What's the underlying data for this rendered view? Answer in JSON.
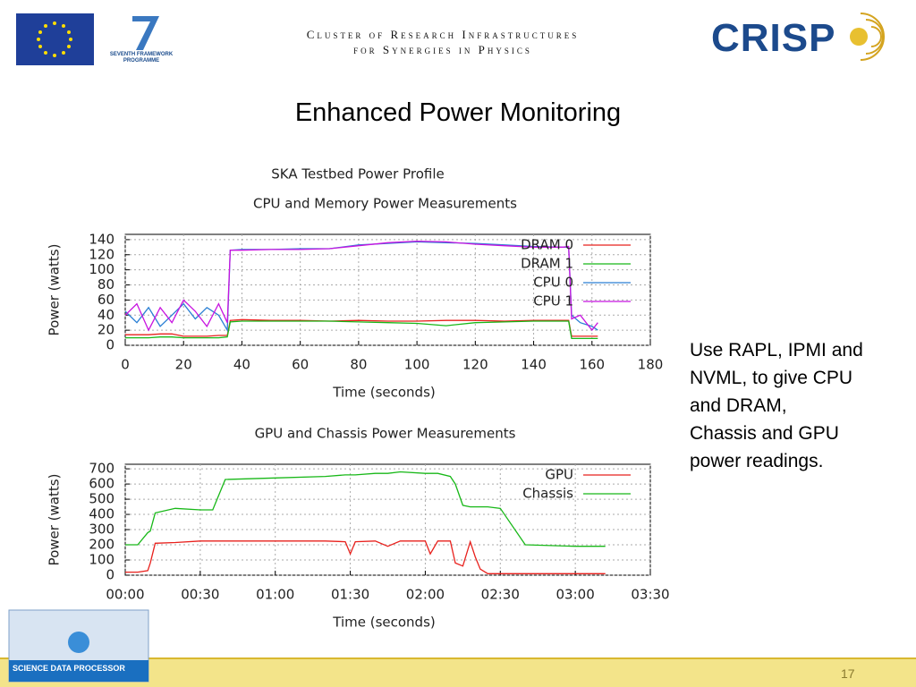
{
  "header": {
    "line1": "Cluster of Research Infrastructures",
    "line2": "for Synergies in Physics",
    "logo": "CRISP",
    "fp7": "SEVENTH FRAMEWORK PROGRAMME"
  },
  "slide": {
    "title": "Enhanced Power Monitoring",
    "side_text": [
      "Use RAPL, IPMI and",
      "NVML, to give CPU",
      "and DRAM,",
      "Chassis and GPU",
      "power readings."
    ],
    "footer_logo": "SCIENCE DATA PROCESSOR",
    "page_number": "17"
  },
  "figure": {
    "title": "SKA Testbed Power Profile"
  },
  "chart_data": [
    {
      "type": "line",
      "title": "CPU and Memory Power Measurements",
      "x_label": "Time (seconds)",
      "y_label": "Power (watts)",
      "x": [
        0,
        4,
        8,
        12,
        16,
        20,
        24,
        28,
        32,
        35,
        36,
        40,
        50,
        60,
        70,
        80,
        90,
        100,
        110,
        120,
        130,
        140,
        150,
        152,
        153,
        156,
        160,
        162
      ],
      "series": [
        {
          "name": "DRAM 0",
          "color": "#e8201c",
          "values": [
            14,
            14,
            14,
            15,
            15,
            12,
            12,
            12,
            13,
            13,
            33,
            34,
            33,
            33,
            32,
            33,
            32,
            32,
            33,
            33,
            32,
            33,
            33,
            33,
            12,
            12,
            12,
            12
          ]
        },
        {
          "name": "DRAM 1",
          "color": "#18b818",
          "values": [
            10,
            10,
            10,
            11,
            11,
            10,
            10,
            10,
            10,
            11,
            31,
            32,
            32,
            32,
            32,
            31,
            30,
            29,
            26,
            30,
            31,
            32,
            32,
            32,
            9,
            9,
            9,
            9
          ]
        },
        {
          "name": "CPU 0",
          "color": "#2a7fd4",
          "values": [
            45,
            30,
            50,
            25,
            40,
            55,
            35,
            50,
            40,
            20,
            126,
            127,
            127,
            128,
            128,
            133,
            135,
            137,
            136,
            135,
            133,
            131,
            130,
            130,
            40,
            30,
            25,
            20
          ]
        },
        {
          "name": "CPU 1",
          "color": "#c814e0",
          "values": [
            40,
            55,
            20,
            50,
            30,
            60,
            45,
            25,
            55,
            30,
            126,
            126,
            127,
            127,
            128,
            132,
            136,
            138,
            137,
            134,
            132,
            130,
            130,
            131,
            35,
            40,
            20,
            30
          ]
        }
      ],
      "xlim": [
        0,
        180
      ],
      "ylim": [
        0,
        147
      ],
      "xticks": [
        0,
        20,
        40,
        60,
        80,
        100,
        120,
        140,
        160,
        180
      ],
      "yticks": [
        0,
        20,
        40,
        60,
        80,
        100,
        120,
        140
      ],
      "grid": true,
      "legend": "upper right"
    },
    {
      "type": "line",
      "title": "GPU and Chassis Power Measurements",
      "x_label": "Time (seconds)",
      "y_label": "Power (watts)",
      "x": [
        0,
        5,
        9,
        10,
        12,
        20,
        30,
        35,
        40,
        60,
        80,
        88,
        90,
        92,
        100,
        105,
        110,
        120,
        122,
        125,
        130,
        132,
        135,
        138,
        140,
        142,
        145,
        150,
        160,
        180,
        192
      ],
      "series": [
        {
          "name": "GPU",
          "color": "#e8201c",
          "values": [
            20,
            20,
            30,
            80,
            210,
            215,
            225,
            225,
            225,
            225,
            225,
            220,
            140,
            220,
            225,
            190,
            225,
            225,
            140,
            225,
            225,
            80,
            60,
            220,
            120,
            40,
            10,
            10,
            10,
            10,
            10
          ]
        },
        {
          "name": "Chassis",
          "color": "#18b818",
          "values": [
            200,
            200,
            280,
            290,
            410,
            440,
            430,
            430,
            630,
            640,
            650,
            660,
            660,
            660,
            670,
            670,
            680,
            670,
            670,
            670,
            650,
            600,
            460,
            450,
            450,
            450,
            450,
            440,
            200,
            190,
            190
          ]
        }
      ],
      "xlim": [
        0,
        210
      ],
      "ylim": [
        0,
        730
      ],
      "xticks": [
        {
          "value": 0,
          "label": "00:00"
        },
        {
          "value": 30,
          "label": "00:30"
        },
        {
          "value": 60,
          "label": "01:00"
        },
        {
          "value": 90,
          "label": "01:30"
        },
        {
          "value": 120,
          "label": "02:00"
        },
        {
          "value": 150,
          "label": "02:30"
        },
        {
          "value": 180,
          "label": "03:00"
        },
        {
          "value": 210,
          "label": "03:30"
        }
      ],
      "yticks": [
        0,
        100,
        200,
        300,
        400,
        500,
        600,
        700
      ],
      "grid": true,
      "legend": "upper right"
    }
  ]
}
